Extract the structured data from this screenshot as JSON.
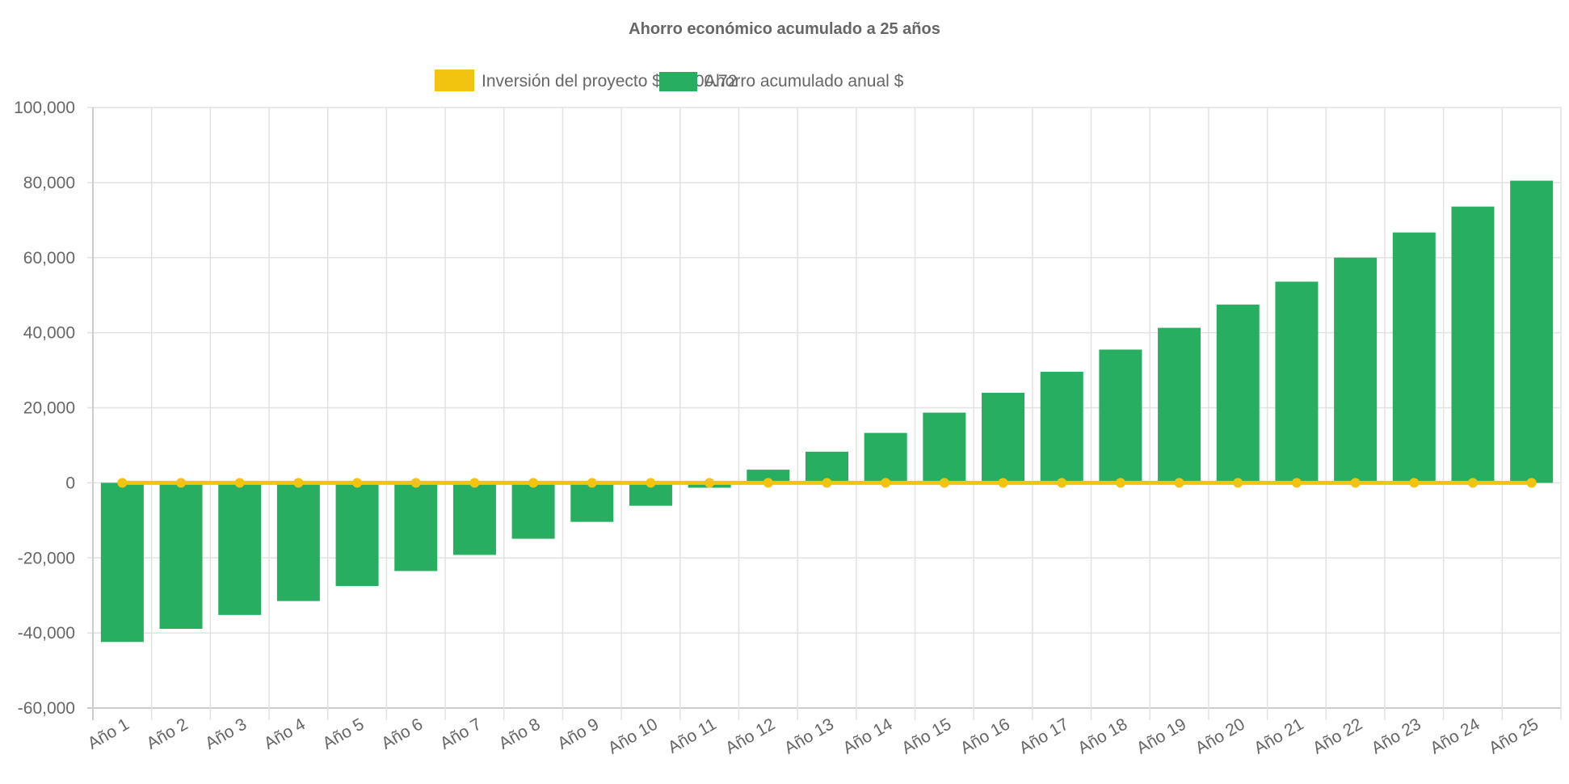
{
  "chart_data": {
    "type": "bar",
    "title": "Ahorro económico acumulado a 25 años",
    "xlabel": "",
    "ylabel": "",
    "ylim": [
      -60000,
      100000
    ],
    "yticks": [
      -60000,
      -40000,
      -20000,
      0,
      20000,
      40000,
      60000,
      80000,
      100000
    ],
    "ytick_labels": [
      "-60,000",
      "-40,000",
      "-20,000",
      "0",
      "20,000",
      "40,000",
      "60,000",
      "80,000",
      "100,000"
    ],
    "grid": true,
    "legend_position": "top-center",
    "categories": [
      "Año 1",
      "Año 2",
      "Año 3",
      "Año 4",
      "Año 5",
      "Año 6",
      "Año 7",
      "Año 8",
      "Año 9",
      "Año 10",
      "Año 11",
      "Año 12",
      "Año 13",
      "Año 14",
      "Año 15",
      "Año 16",
      "Año 17",
      "Año 18",
      "Año 19",
      "Año 20",
      "Año 21",
      "Año 22",
      "Año 23",
      "Año 24",
      "Año 25"
    ],
    "series": [
      {
        "name": "Inversión del proyecto $45,900.72",
        "type": "line",
        "color": "#f2c40f",
        "values": [
          0,
          0,
          0,
          0,
          0,
          0,
          0,
          0,
          0,
          0,
          0,
          0,
          0,
          0,
          0,
          0,
          0,
          0,
          0,
          0,
          0,
          0,
          0,
          0,
          0
        ]
      },
      {
        "name": "Ahorro acumulado anual $",
        "type": "bar",
        "color": "#27ae60",
        "values": [
          -42400,
          -38900,
          -35200,
          -31500,
          -27500,
          -23500,
          -19200,
          -14900,
          -10400,
          -6100,
          -1300,
          3500,
          8300,
          13300,
          18700,
          24000,
          29600,
          35500,
          41300,
          47500,
          53600,
          60000,
          66700,
          73600,
          80500
        ]
      }
    ]
  }
}
